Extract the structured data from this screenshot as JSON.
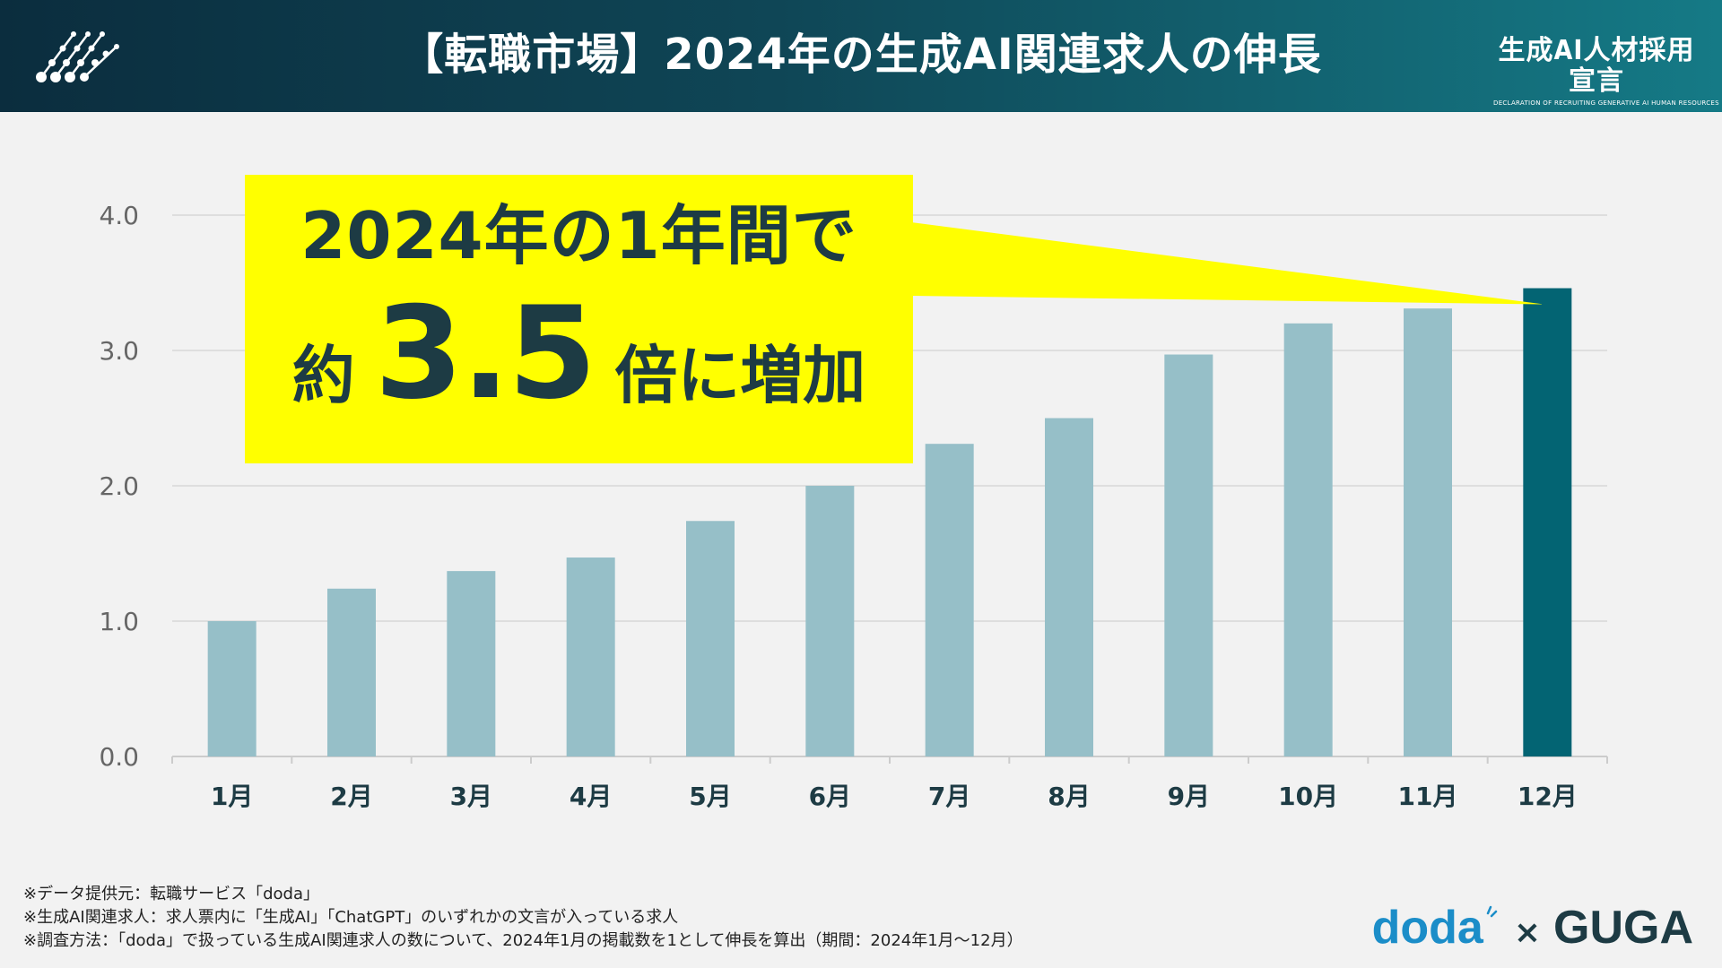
{
  "header": {
    "title": "【転職市場】2024年の生成AI関連求人の伸長",
    "brand_main": "生成AI人材採用宣言",
    "brand_sub": "DECLARATION OF RECRUITING GENERATIVE AI HUMAN RESOURCES"
  },
  "callout": {
    "line1": "2024年の1年間で",
    "prefix": "約",
    "value": "3.5",
    "suffix": "倍に増加"
  },
  "chart_data": {
    "type": "bar",
    "title": "【転職市場】2024年の生成AI関連求人の伸長",
    "categories": [
      "1月",
      "2月",
      "3月",
      "4月",
      "5月",
      "6月",
      "7月",
      "8月",
      "9月",
      "10月",
      "11月",
      "12月"
    ],
    "values": [
      1.0,
      1.24,
      1.37,
      1.47,
      1.74,
      2.0,
      2.31,
      2.5,
      2.97,
      3.2,
      3.31,
      3.46
    ],
    "highlight_index": 11,
    "ylim": [
      0,
      4
    ],
    "yticks": [
      "0.0",
      "1.0",
      "2.0",
      "3.0",
      "4.0"
    ],
    "grid": true,
    "colors": {
      "bar": "#96bfc8",
      "highlight": "#036473",
      "grid": "#d8d8d8",
      "axis": "#cccccc"
    }
  },
  "notes": [
    "※データ提供元：転職サービス「doda」",
    "※生成AI関連求人：求人票内に「生成AI」「ChatGPT」のいずれかの文言が入っている求人",
    "※調査方法：「doda」で扱っている生成AI関連求人の数について、2024年1月の掲載数を1として伸長を算出（期間：2024年1月〜12月）"
  ],
  "footer": {
    "doda": "doda",
    "cross": "×",
    "guga": "GUGA"
  },
  "colors": {
    "callout": "#ffff00",
    "text_dark": "#1d3b44",
    "doda_blue": "#1b8dc8"
  }
}
